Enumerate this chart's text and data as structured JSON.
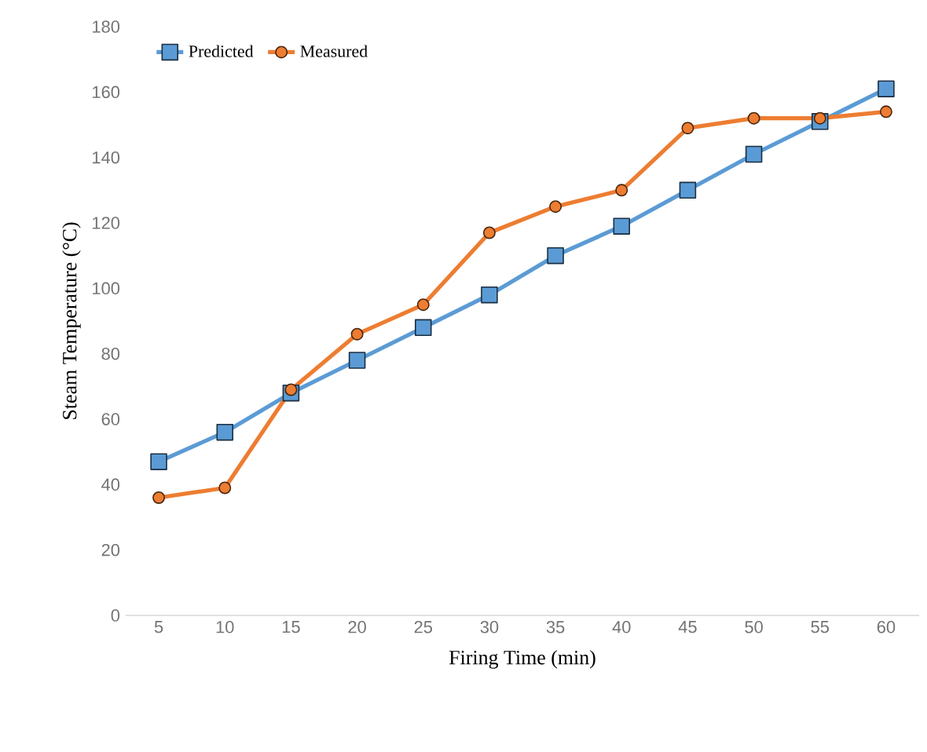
{
  "chart_data": {
    "type": "line",
    "xlabel": "Firing Time (min)",
    "ylabel": "Steam Temperature (°C)",
    "categories": [
      "5",
      "10",
      "15",
      "20",
      "25",
      "30",
      "35",
      "40",
      "45",
      "50",
      "55",
      "60"
    ],
    "series": [
      {
        "name": "Predicted",
        "color": "#5b9bd5",
        "marker": "square",
        "values": [
          47,
          56,
          68,
          78,
          88,
          98,
          110,
          119,
          130,
          141,
          151,
          161
        ]
      },
      {
        "name": "Measured",
        "color": "#ed7d31",
        "marker": "circle",
        "values": [
          36,
          39,
          69,
          86,
          95,
          117,
          125,
          130,
          149,
          152,
          152,
          154
        ]
      }
    ],
    "ylim": [
      0,
      180
    ],
    "yticks": [
      0,
      20,
      40,
      60,
      80,
      100,
      120,
      140,
      160,
      180
    ],
    "grid": false,
    "legend": "top left",
    "line_style": "solid"
  }
}
